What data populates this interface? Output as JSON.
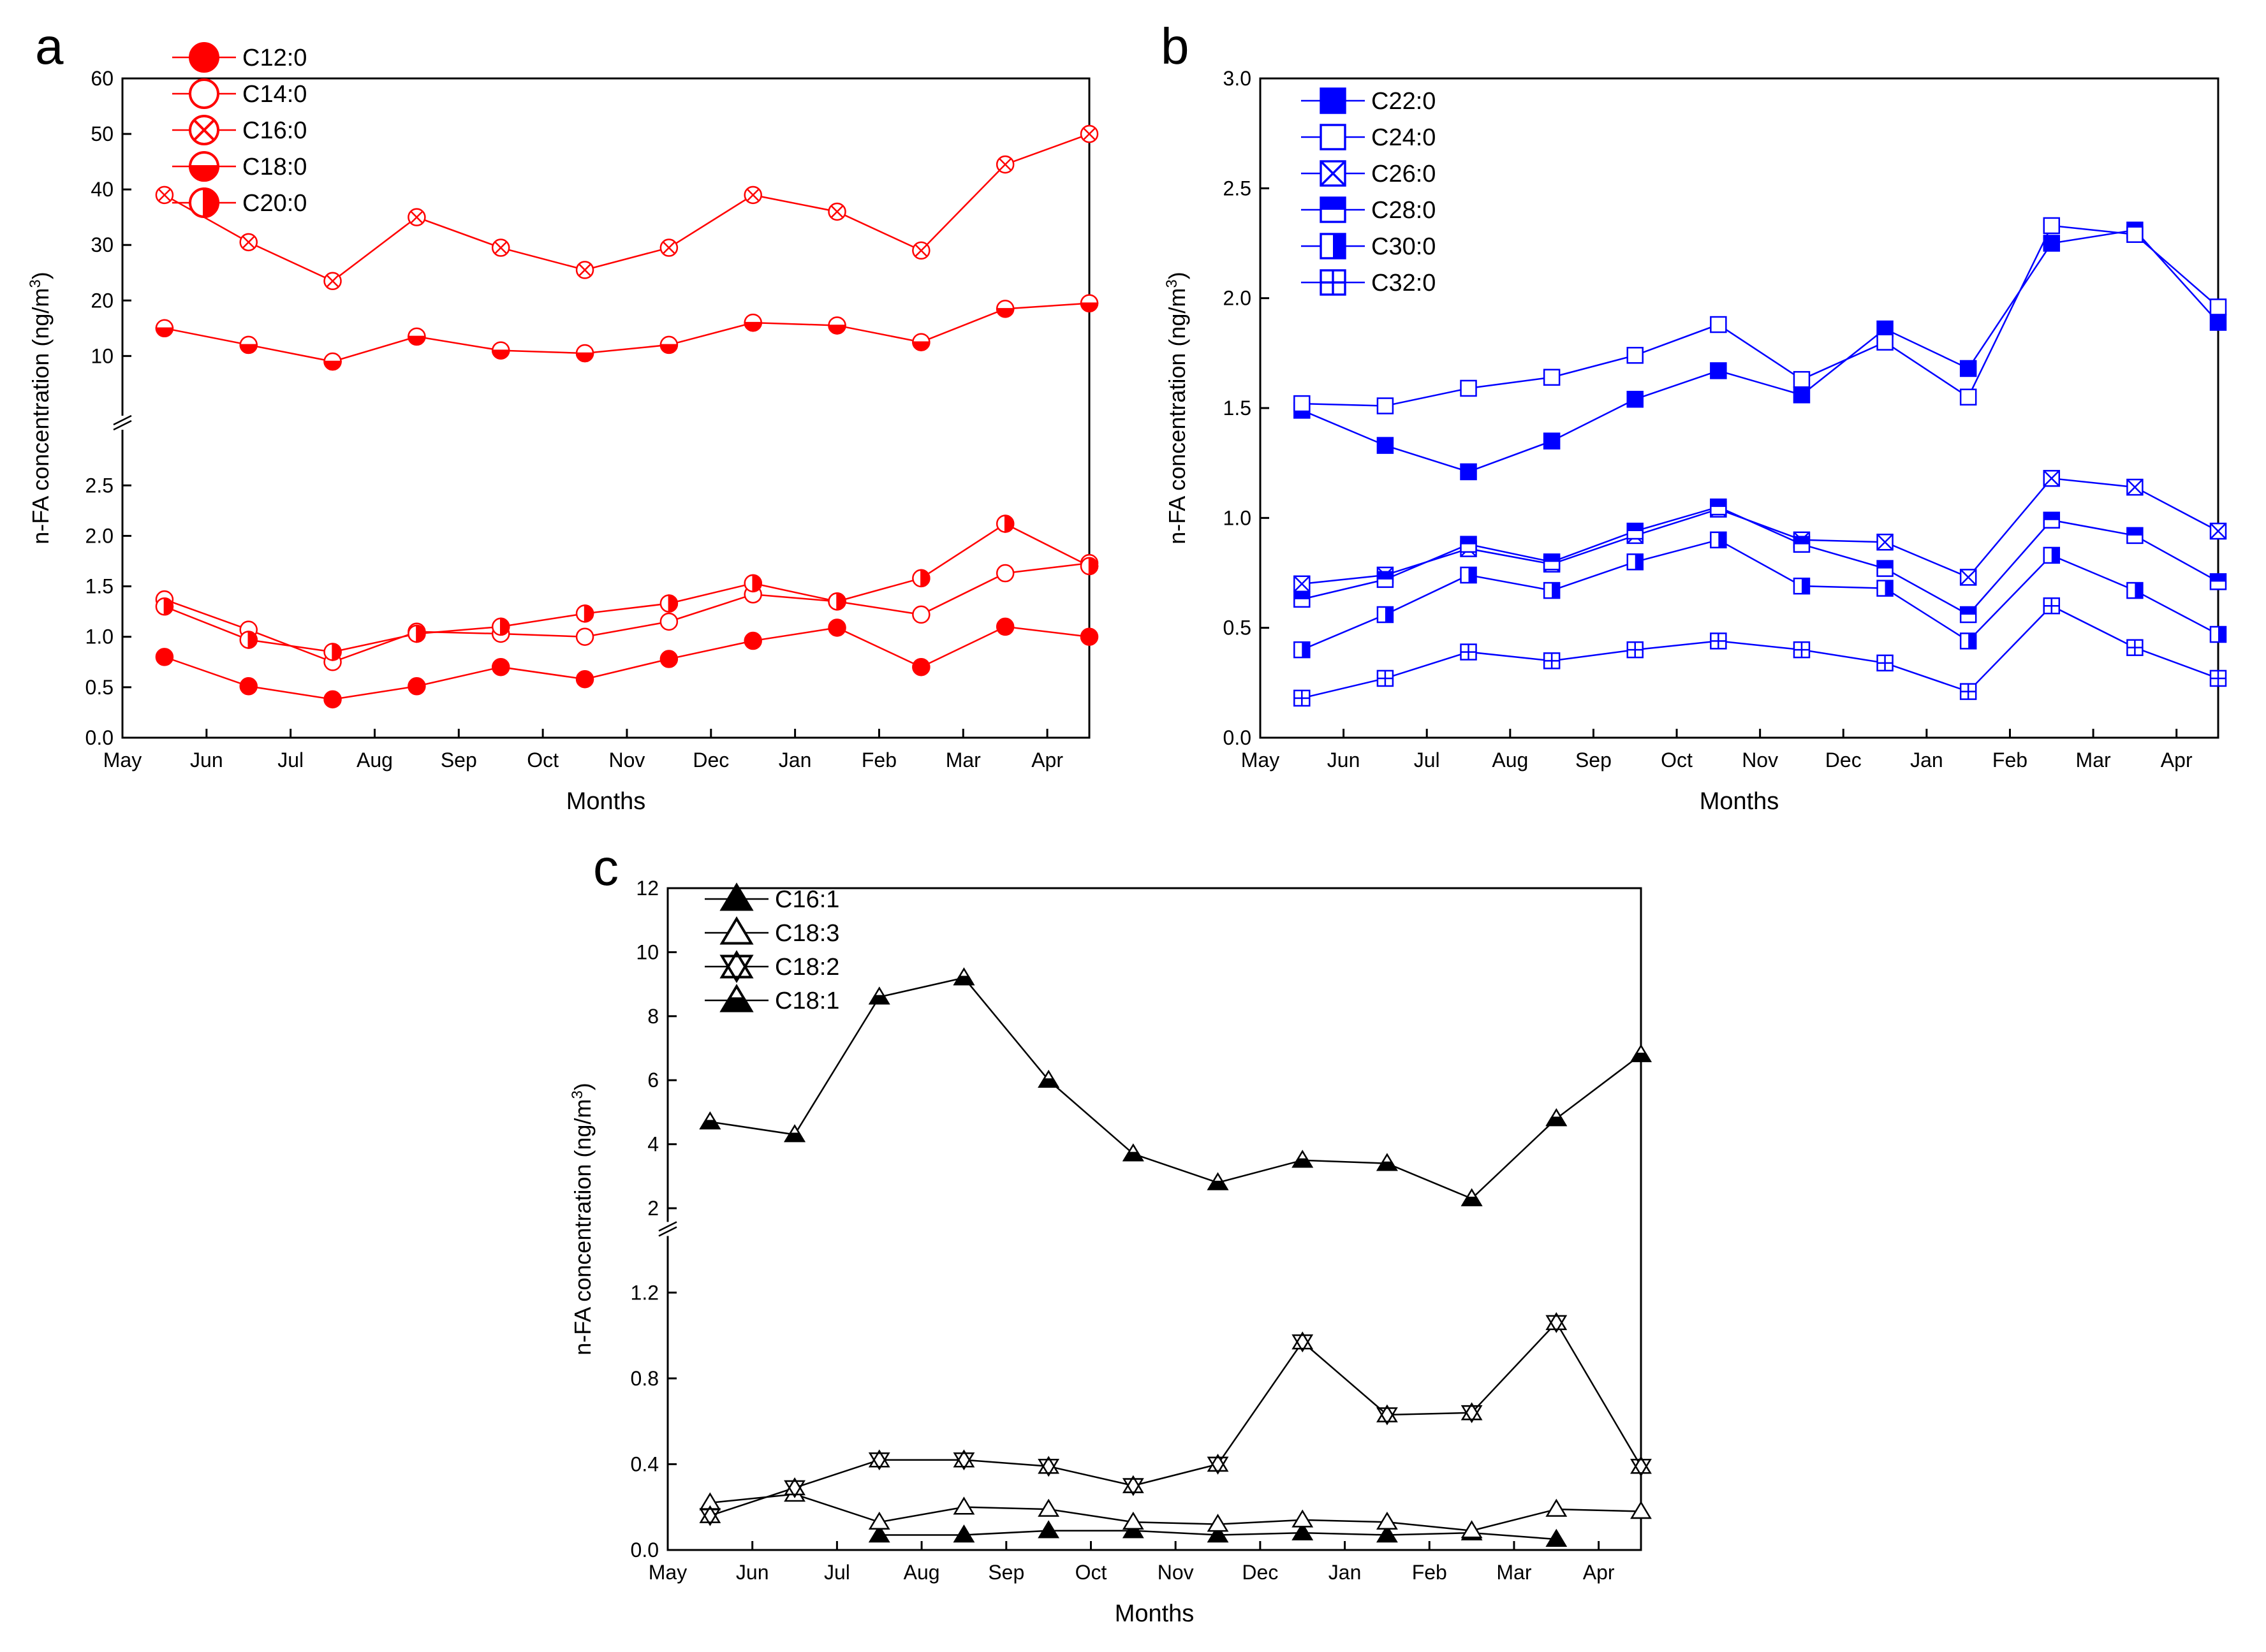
{
  "months": [
    "May",
    "Jun",
    "Jul",
    "Aug",
    "Sep",
    "Oct",
    "Nov",
    "Dec",
    "Jan",
    "Feb",
    "Mar",
    "Apr"
  ],
  "chart_data": [
    {
      "type": "line",
      "panel_label": "a",
      "xlabel": "Months",
      "ylabel": "n-FA concentration (ng/m",
      "ylabel_sup": "3",
      "ylabel_close": ")",
      "color": "#ff0000",
      "y_lower": {
        "range": [
          0,
          2.9
        ],
        "ticks": [
          0.0,
          0.5,
          1.0,
          1.5,
          2.0,
          2.5
        ],
        "tick_labels": [
          "0.0",
          "0.5",
          "1.0",
          "1.5",
          "2.0",
          "2.5"
        ]
      },
      "y_upper": {
        "range": [
          2,
          60
        ],
        "ticks": [
          10,
          20,
          30,
          40,
          50,
          60
        ],
        "tick_labels": [
          "10",
          "20",
          "30",
          "40",
          "50",
          "60"
        ]
      },
      "x_point_offset": 0.5,
      "series": [
        {
          "name": "C12:0",
          "marker": "filled-circle",
          "axis": "lower",
          "values": [
            0.8,
            0.51,
            0.38,
            0.51,
            0.7,
            0.58,
            0.78,
            0.96,
            1.09,
            0.7,
            1.1,
            1.0
          ]
        },
        {
          "name": "C14:0",
          "marker": "open-circle",
          "axis": "lower",
          "values": [
            1.37,
            1.07,
            0.75,
            1.05,
            1.03,
            1.0,
            1.15,
            1.42,
            1.35,
            1.22,
            1.63,
            1.73
          ]
        },
        {
          "name": "C16:0",
          "marker": "crossed-circle",
          "axis": "upper",
          "values": [
            39,
            30.5,
            23.5,
            35,
            29.5,
            25.5,
            29.5,
            39,
            36,
            29,
            44.5,
            50
          ]
        },
        {
          "name": "C18:0",
          "marker": "bottom-half-circle",
          "axis": "upper",
          "values": [
            15,
            12,
            9,
            13.5,
            11,
            10.5,
            12,
            16,
            15.5,
            12.5,
            18.5,
            19.5
          ]
        },
        {
          "name": "C20:0",
          "marker": "right-half-circle",
          "axis": "lower",
          "values": [
            1.3,
            0.97,
            0.85,
            1.03,
            1.1,
            1.23,
            1.33,
            1.53,
            1.35,
            1.58,
            2.12,
            1.7
          ]
        }
      ]
    },
    {
      "type": "line",
      "panel_label": "b",
      "xlabel": "Months",
      "ylabel": "n-FA concentration (ng/m",
      "ylabel_sup": "3",
      "ylabel_close": ")",
      "color": "#0000ff",
      "y": {
        "range": [
          0,
          3.0
        ],
        "ticks": [
          0.0,
          0.5,
          1.0,
          1.5,
          2.0,
          2.5,
          3.0
        ],
        "tick_labels": [
          "0.0",
          "0.5",
          "1.0",
          "1.5",
          "2.0",
          "2.5",
          "3.0"
        ]
      },
      "x_point_offset": 0.5,
      "series": [
        {
          "name": "C22:0",
          "marker": "filled-square",
          "values": [
            1.49,
            1.33,
            1.21,
            1.35,
            1.54,
            1.67,
            1.56,
            1.86,
            1.68,
            2.25,
            2.31,
            1.89
          ]
        },
        {
          "name": "C24:0",
          "marker": "open-square",
          "values": [
            1.52,
            1.51,
            1.59,
            1.64,
            1.74,
            1.88,
            1.63,
            1.8,
            1.55,
            2.33,
            2.29,
            1.96
          ]
        },
        {
          "name": "C26:0",
          "marker": "crossed-square",
          "values": [
            0.7,
            0.74,
            0.86,
            0.79,
            0.92,
            1.04,
            0.9,
            0.89,
            0.73,
            1.18,
            1.14,
            0.94
          ]
        },
        {
          "name": "C28:0",
          "marker": "top-half-square",
          "values": [
            0.63,
            0.72,
            0.88,
            0.8,
            0.94,
            1.05,
            0.88,
            0.77,
            0.56,
            0.99,
            0.92,
            0.71
          ]
        },
        {
          "name": "C30:0",
          "marker": "right-half-square",
          "values": [
            0.4,
            0.56,
            0.74,
            0.67,
            0.8,
            0.9,
            0.69,
            0.68,
            0.44,
            0.83,
            0.67,
            0.47
          ]
        },
        {
          "name": "C32:0",
          "marker": "plus-square",
          "values": [
            0.18,
            0.27,
            0.39,
            0.35,
            0.4,
            0.44,
            0.4,
            0.34,
            0.21,
            0.6,
            0.41,
            0.27
          ]
        }
      ]
    },
    {
      "type": "line",
      "panel_label": "c",
      "xlabel": "Months",
      "ylabel": "n-FA concentration (ng/m",
      "ylabel_sup": "3",
      "ylabel_close": ")",
      "color": "#000000",
      "y_lower": {
        "range": [
          0,
          1.4
        ],
        "ticks": [
          0.0,
          0.4,
          0.8,
          1.2
        ],
        "tick_labels": [
          "0.0",
          "0.4",
          "0.8",
          "1.2"
        ]
      },
      "y_upper": {
        "range": [
          2,
          12
        ],
        "ticks": [
          2,
          4,
          6,
          8,
          10,
          12
        ],
        "tick_labels": [
          "2",
          "4",
          "6",
          "8",
          "10",
          "12"
        ]
      },
      "x_point_offset": 0.5,
      "series": [
        {
          "name": "C16:1",
          "marker": "filled-triangle",
          "axis": "lower",
          "x_index": [
            2,
            3,
            4,
            5,
            6,
            7,
            8,
            9,
            10
          ],
          "values": [
            0.07,
            0.07,
            0.09,
            0.09,
            0.07,
            0.08,
            0.07,
            0.08,
            0.05
          ]
        },
        {
          "name": "C18:3",
          "marker": "open-triangle",
          "axis": "lower",
          "x_index": [
            0,
            1,
            2,
            3,
            4,
            5,
            6,
            7,
            8,
            9,
            10,
            11
          ],
          "values": [
            0.22,
            0.26,
            0.13,
            0.2,
            0.19,
            0.13,
            0.12,
            0.14,
            0.13,
            0.09,
            0.19,
            0.18
          ]
        },
        {
          "name": "C18:2",
          "marker": "crossed-triangle",
          "axis": "lower",
          "x_index": [
            0,
            1,
            2,
            3,
            4,
            5,
            6,
            7,
            8,
            9,
            10,
            11
          ],
          "values": [
            0.16,
            0.29,
            0.42,
            0.42,
            0.39,
            0.3,
            0.4,
            0.97,
            0.63,
            0.64,
            1.06,
            0.39
          ]
        },
        {
          "name": "C18:1",
          "marker": "bottom-half-triangle",
          "axis": "upper",
          "x_index": [
            0,
            1,
            2,
            3,
            4,
            5,
            6,
            7,
            8,
            9,
            10,
            11
          ],
          "values": [
            4.7,
            4.3,
            8.6,
            9.2,
            6.0,
            3.7,
            2.8,
            3.5,
            3.4,
            2.3,
            4.8,
            6.8
          ]
        }
      ]
    }
  ]
}
